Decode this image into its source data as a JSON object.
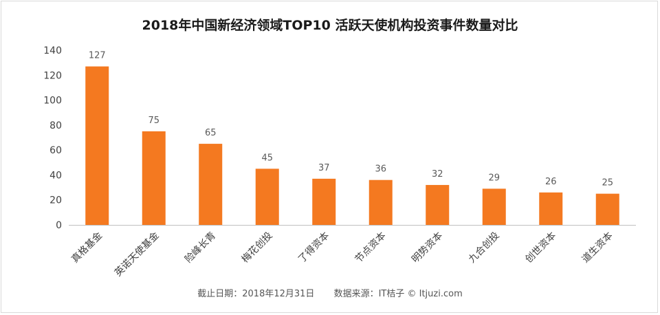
{
  "chart_data": {
    "type": "bar",
    "title": "2018年中国新经济领域TOP10 活跃天使机构投资事件数量对比",
    "categories": [
      "真格基金",
      "英诺天使基金",
      "险峰长青",
      "梅花创投",
      "了得资本",
      "节点资本",
      "明势资本",
      "九合创投",
      "创世资本",
      "道生资本"
    ],
    "values": [
      127,
      75,
      65,
      45,
      37,
      36,
      32,
      29,
      26,
      25
    ],
    "ylim": [
      0,
      140
    ],
    "yticks": [
      0,
      20,
      40,
      60,
      80,
      100,
      120,
      140
    ],
    "xlabel": "",
    "ylabel": "",
    "grid": false,
    "bar_color": "#f47920"
  },
  "footer": {
    "date_text": "截止日期：2018年12月31日",
    "source_text": "数据来源：IT桔子 © Itjuzi.com"
  }
}
